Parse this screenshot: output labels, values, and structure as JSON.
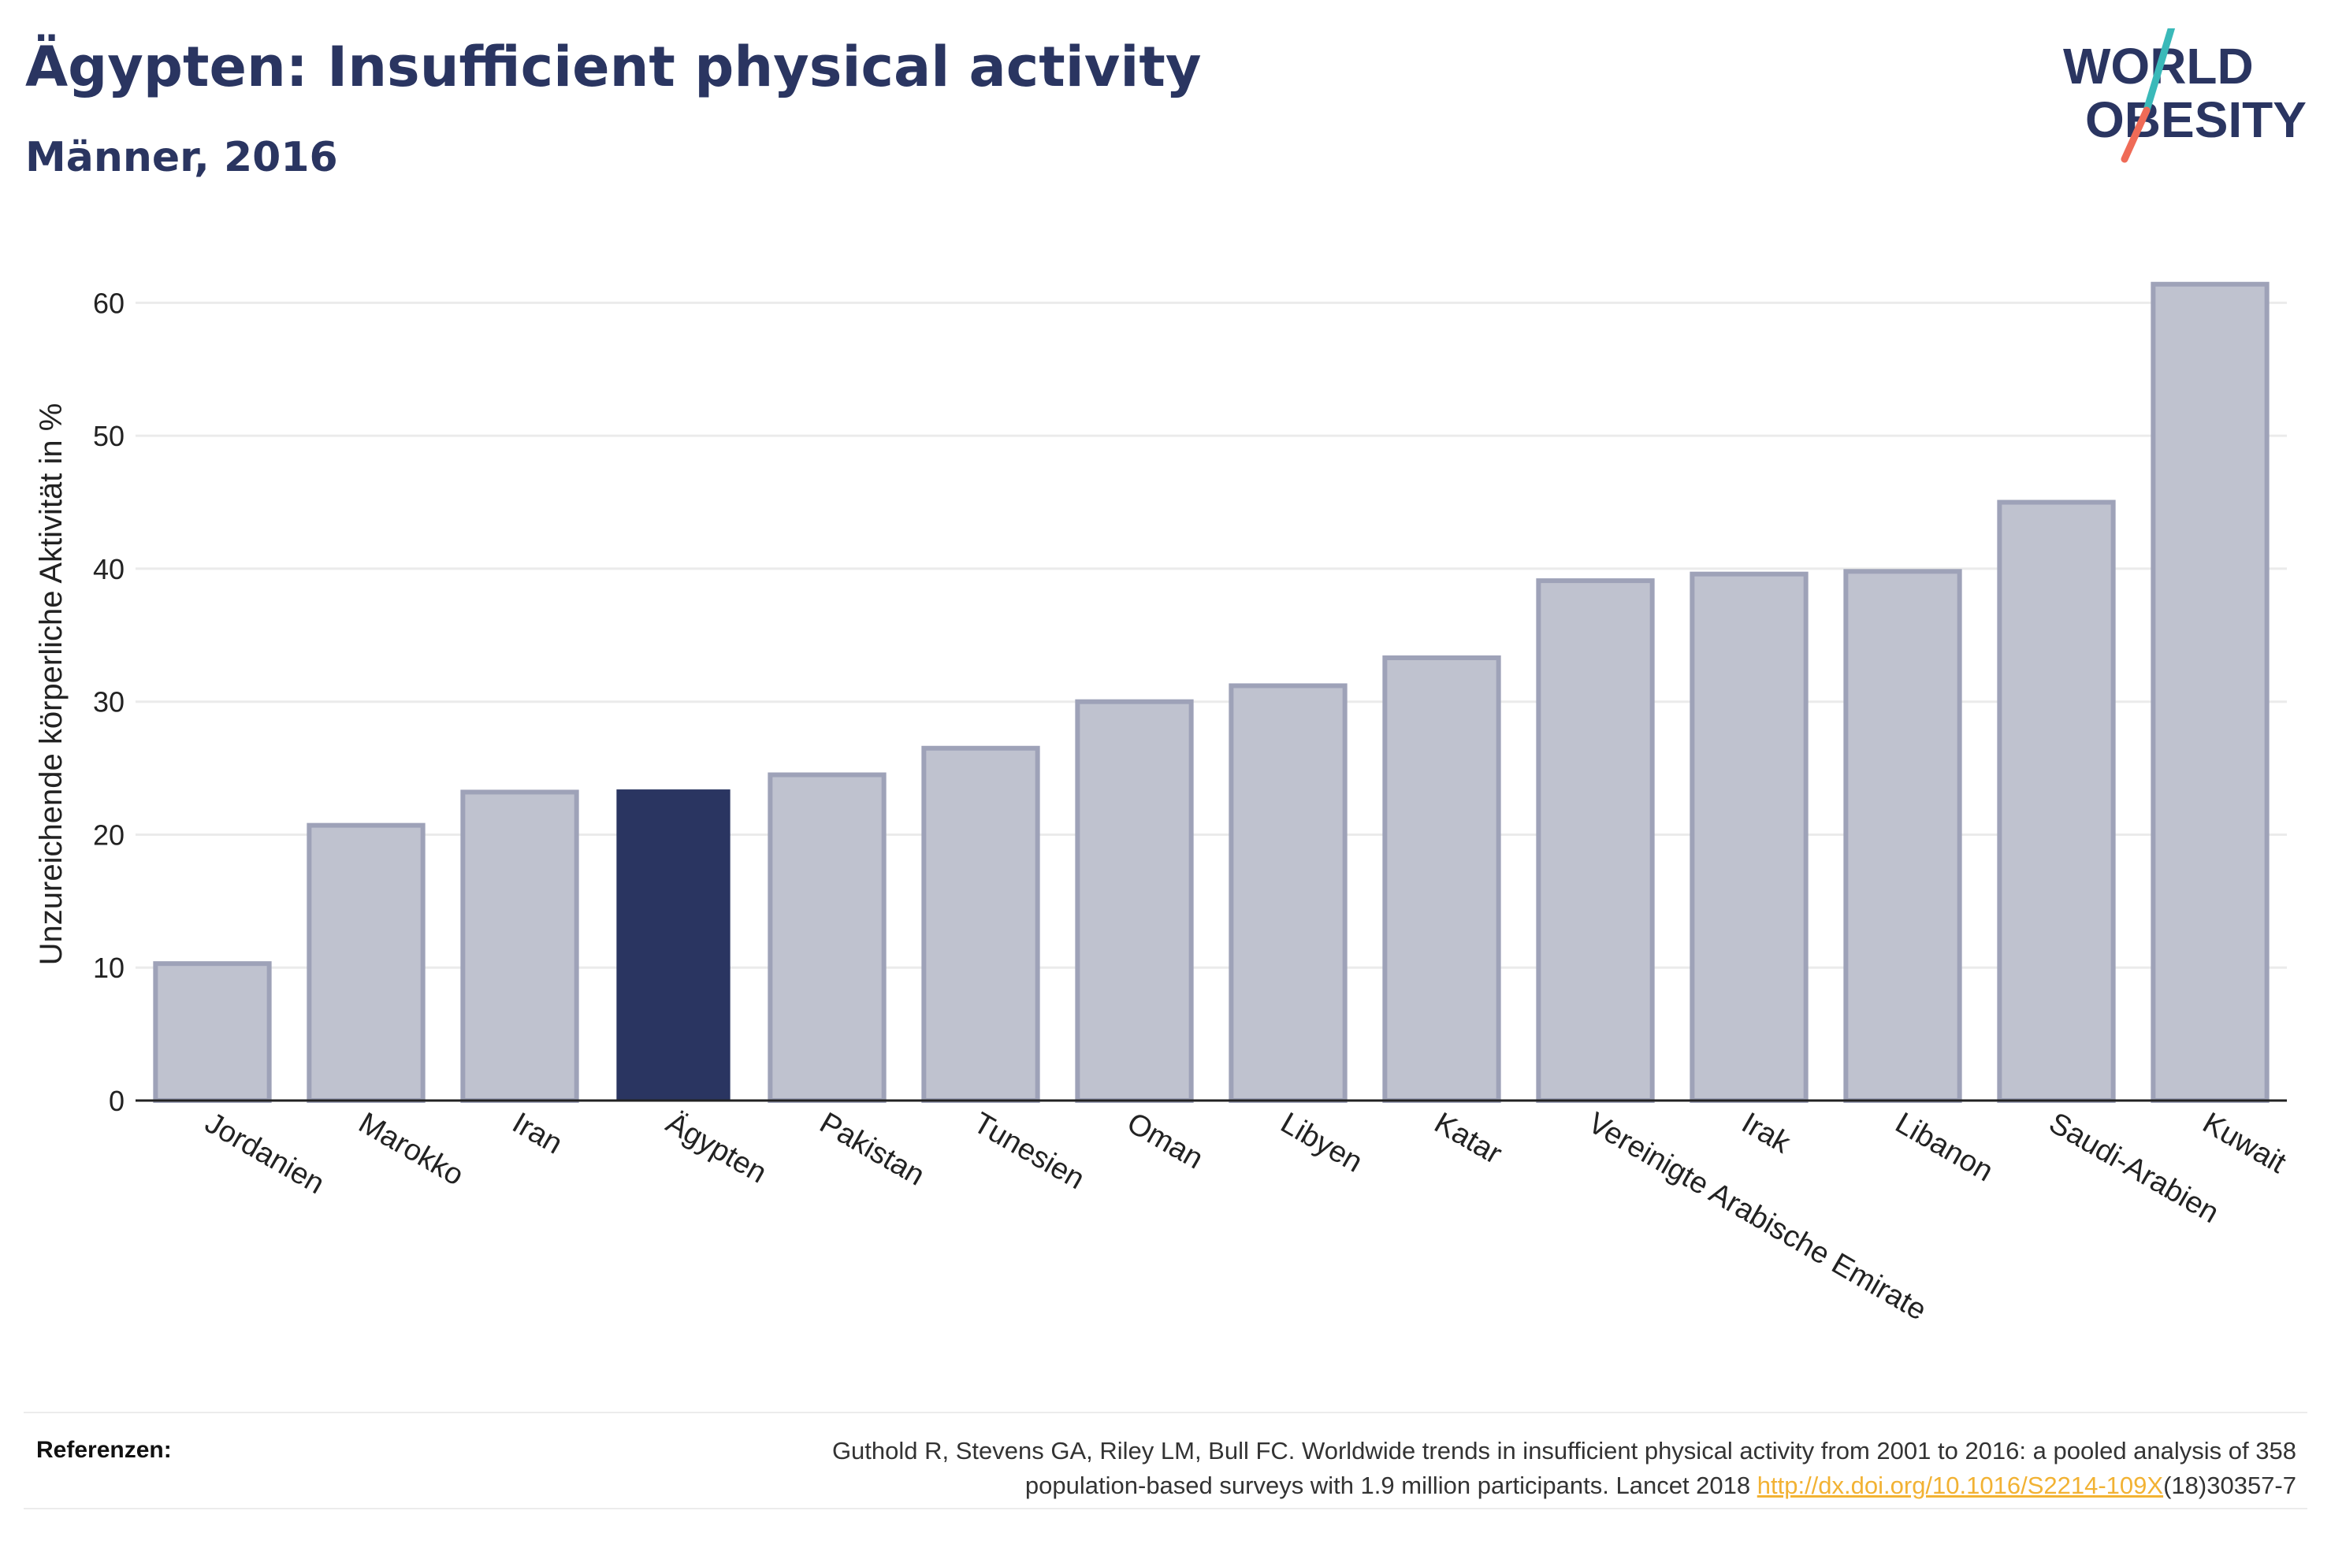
{
  "header": {
    "title": "Ägypten: Insufficient physical activity",
    "subtitle": "Männer, 2016"
  },
  "logo": {
    "line1": "WORLD",
    "line2": "OBESITY"
  },
  "colors": {
    "highlight": "#2a3561",
    "bar_fill": "#bfc2cf",
    "bar_stroke": "#9ea2b8",
    "grid": "#ebebeb",
    "logo_teal": "#3ab9b9",
    "logo_coral": "#ef6b57",
    "link": "#f2b233"
  },
  "chart_data": {
    "type": "bar",
    "categories": [
      "Jordanien",
      "Marokko",
      "Iran",
      "Ägypten",
      "Pakistan",
      "Tunesien",
      "Oman",
      "Libyen",
      "Katar",
      "Vereinigte Arabische Emirate",
      "Irak",
      "Libanon",
      "Saudi-Arabien",
      "Kuwait"
    ],
    "values": [
      10.3,
      20.7,
      23.2,
      23.4,
      24.5,
      26.5,
      30.0,
      31.2,
      33.3,
      39.1,
      39.6,
      39.8,
      45.0,
      61.4
    ],
    "highlight": "Ägypten",
    "ylabel": "Unzureichende körperliche Aktivität in %",
    "xlabel": "",
    "ylim": [
      0,
      65
    ],
    "yticks": [
      0,
      10,
      20,
      30,
      40,
      50,
      60
    ],
    "grid": true
  },
  "references": {
    "label": "Referenzen:",
    "text_line1": "Guthold R, Stevens GA, Riley LM, Bull FC. Worldwide trends in insufficient physical activity from 2001 to 2016: a pooled analysis of 358",
    "text_line2_prefix": "population-based surveys with 1.9 million participants. Lancet 2018 ",
    "link": "http://dx.doi.org/10.1016/S2214-109X",
    "text_line2_suffix": "(18)30357-7"
  }
}
